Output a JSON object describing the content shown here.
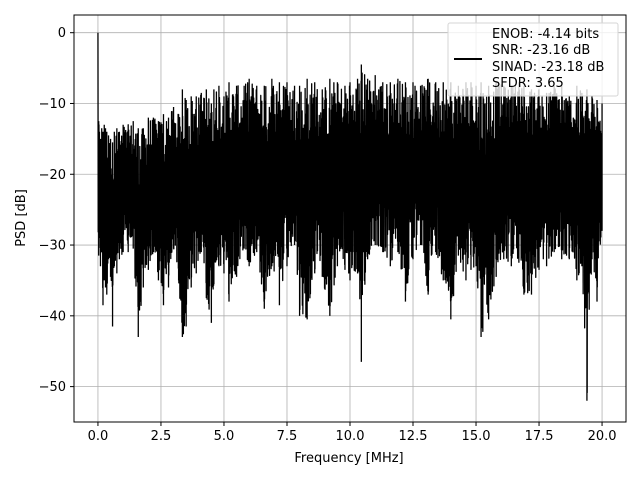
{
  "chart_data": {
    "type": "line",
    "title": "",
    "xlabel": "Frequency [MHz]",
    "ylabel": "PSD [dB]",
    "xlim": [
      -0.95,
      20.95
    ],
    "ylim": [
      -55,
      2.5
    ],
    "grid": true,
    "legend_position": "upper-right",
    "xticks": [
      0.0,
      2.5,
      5.0,
      7.5,
      10.0,
      12.5,
      15.0,
      17.5,
      20.0
    ],
    "xtick_labels": [
      "0.0",
      "2.5",
      "5.0",
      "7.5",
      "10.0",
      "12.5",
      "15.0",
      "17.5",
      "20.0"
    ],
    "yticks": [
      0,
      -10,
      -20,
      -30,
      -40,
      -50
    ],
    "ytick_labels": [
      "0",
      "−10",
      "−20",
      "−30",
      "−40",
      "−50"
    ],
    "legend": [
      "ENOB: -4.14 bits",
      "SNR: -23.16 dB",
      "SINAD: -23.18 dB",
      "SFDR: 3.65"
    ],
    "series": [
      {
        "color": "#000000",
        "x": [
          0.0,
          0.03,
          0.06,
          0.1,
          0.15,
          0.2,
          0.25,
          0.3,
          0.35,
          0.42,
          0.5,
          0.58,
          0.65,
          0.75,
          0.85,
          1.0,
          1.2,
          1.4,
          1.6,
          1.8,
          2.0,
          2.2,
          2.4,
          2.6,
          2.8,
          3.0,
          3.2,
          3.35,
          3.5,
          3.7,
          3.9,
          4.1,
          4.3,
          4.5,
          4.6,
          4.8,
          5.0,
          5.2,
          5.5,
          5.8,
          6.0,
          6.3,
          6.6,
          6.9,
          7.2,
          7.5,
          7.8,
          8.0,
          8.3,
          8.6,
          8.9,
          9.2,
          9.5,
          9.8,
          10.0,
          10.3,
          10.45,
          10.7,
          11.0,
          11.3,
          11.6,
          11.9,
          12.2,
          12.5,
          12.8,
          13.1,
          13.4,
          13.7,
          14.0,
          14.3,
          14.6,
          14.8,
          15.0,
          15.2,
          15.5,
          15.8,
          16.1,
          16.4,
          16.7,
          16.9,
          17.2,
          17.5,
          17.8,
          18.1,
          18.4,
          18.7,
          19.0,
          19.2,
          19.4,
          19.6,
          19.8,
          20.0
        ],
        "peak": [
          0.0,
          -12.5,
          -14.0,
          -15.0,
          -13.5,
          -14.0,
          -13.0,
          -13.5,
          -14.0,
          -14.5,
          -15.0,
          -15.5,
          -14.0,
          -13.5,
          -14.0,
          -13.0,
          -13.0,
          -12.5,
          -13.5,
          -13.5,
          -12.0,
          -12.0,
          -12.5,
          -11.5,
          -12.0,
          -10.5,
          -11.5,
          -8.0,
          -9.5,
          -9.0,
          -9.0,
          -8.5,
          -8.0,
          -10.0,
          -8.0,
          -7.5,
          -9.0,
          -7.0,
          -7.5,
          -7.5,
          -6.5,
          -7.5,
          -7.5,
          -6.5,
          -7.0,
          -7.0,
          -7.5,
          -7.5,
          -6.5,
          -7.0,
          -8.0,
          -6.5,
          -7.0,
          -7.5,
          -7.0,
          -6.5,
          -4.5,
          -6.5,
          -6.0,
          -7.0,
          -7.0,
          -6.5,
          -7.0,
          -7.0,
          -7.5,
          -6.5,
          -7.0,
          -7.0,
          -7.0,
          -7.5,
          -7.0,
          -7.0,
          -7.5,
          -7.0,
          -7.5,
          -7.0,
          -7.5,
          -7.5,
          -7.0,
          -7.5,
          -8.0,
          -8.0,
          -8.5,
          -7.5,
          -7.5,
          -9.0,
          -7.5,
          -8.5,
          -8.0,
          -9.0,
          -9.5,
          -10.0
        ],
        "trough": [
          -31.0,
          -31.5,
          -29.0,
          -33.0,
          -31.0,
          -38.5,
          -35.0,
          -36.0,
          -37.0,
          -32.0,
          -34.5,
          -41.5,
          -33.0,
          -34.0,
          -32.0,
          -31.0,
          -31.0,
          -30.5,
          -43.0,
          -36.0,
          -33.5,
          -31.0,
          -35.0,
          -38.5,
          -36.0,
          -30.5,
          -35.0,
          -43.0,
          -41.5,
          -36.0,
          -34.0,
          -31.0,
          -37.5,
          -41.0,
          -35.5,
          -33.0,
          -34.0,
          -38.0,
          -34.5,
          -30.5,
          -33.0,
          -31.0,
          -39.0,
          -33.0,
          -38.5,
          -33.0,
          -30.0,
          -40.0,
          -40.5,
          -34.0,
          -34.5,
          -40.0,
          -33.0,
          -33.5,
          -35.0,
          -34.0,
          -46.5,
          -32.0,
          -30.0,
          -31.0,
          -33.0,
          -31.0,
          -38.0,
          -32.0,
          -30.0,
          -37.0,
          -31.0,
          -35.0,
          -40.5,
          -31.5,
          -35.0,
          -33.5,
          -33.0,
          -43.0,
          -40.5,
          -34.5,
          -32.0,
          -33.0,
          -32.5,
          -37.0,
          -37.0,
          -33.5,
          -33.0,
          -31.0,
          -32.0,
          -32.0,
          -35.0,
          -33.0,
          -52.0,
          -32.0,
          -38.0,
          -28.0
        ]
      }
    ]
  }
}
